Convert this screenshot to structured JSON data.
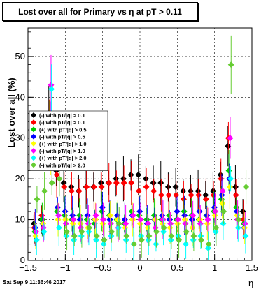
{
  "title": "Lost over all for Primary vs  η at pT > 0.11",
  "timestamp": "Sat Sep  9 11:36:46 2017",
  "colors": {
    "series": [
      "#000000",
      "#ff0000",
      "#00cc00",
      "#0000ff",
      "#ffff00",
      "#ff00ff",
      "#00ffff",
      "#66cc33"
    ]
  },
  "chart_data": {
    "type": "scatter",
    "xlabel": "η",
    "ylabel": "Lost over all (%)",
    "xlim": [
      -1.5,
      1.5
    ],
    "ylim": [
      0,
      57
    ],
    "x_ticks": [
      -1.5,
      -1,
      -0.5,
      0,
      0.5,
      1,
      1.5
    ],
    "x_tick_labels": [
      "−1.5",
      "−1",
      "−0.5",
      "0",
      "0.5",
      "1",
      "1.5"
    ],
    "y_ticks": [
      0,
      10,
      20,
      30,
      40,
      50
    ],
    "y_tick_labels": [
      "0",
      "10",
      "20",
      "30",
      "40",
      "50"
    ],
    "grid": true,
    "legend_position": "left-center",
    "series": [
      {
        "name": "(-) with pT/|q| > 0.1",
        "marker": "diamond",
        "x": [
          -1.4,
          -1.3,
          -1.2,
          -1.1,
          -1.0,
          -0.9,
          -0.8,
          -0.7,
          -0.6,
          -0.5,
          -0.4,
          -0.3,
          -0.2,
          -0.1,
          0.0,
          0.1,
          0.2,
          0.3,
          0.4,
          0.5,
          0.6,
          0.7,
          0.8,
          0.9,
          1.0,
          1.1,
          1.2,
          1.3,
          1.4
        ],
        "y": [
          9,
          10,
          36,
          22,
          19,
          18,
          17,
          18,
          18,
          19,
          19,
          20,
          20,
          21,
          21,
          20,
          19,
          19,
          18,
          18,
          17,
          17,
          17,
          16,
          17,
          21,
          28,
          18,
          12
        ]
      },
      {
        "name": "(-) with pT/|q| > 0.1",
        "marker": "diamond",
        "x": [
          -1.4,
          -1.3,
          -1.2,
          -1.1,
          -1.0,
          -0.9,
          -0.8,
          -0.7,
          -0.6,
          -0.5,
          -0.4,
          -0.3,
          -0.2,
          -0.1,
          0.0,
          0.1,
          0.2,
          0.3,
          0.4,
          0.5,
          0.6,
          0.7,
          0.8,
          0.9,
          1.0,
          1.1,
          1.2,
          1.3,
          1.4
        ],
        "y": [
          8,
          11,
          34,
          21,
          18,
          17,
          17,
          18,
          18,
          18,
          19,
          19,
          19,
          19,
          17,
          18,
          17,
          16,
          16,
          16,
          15,
          16,
          16,
          15,
          16,
          20,
          30,
          16,
          10
        ]
      },
      {
        "name": "(+) with pT/|q| > 0.5",
        "marker": "diamond",
        "x": [
          -1.4,
          -1.3,
          -1.2,
          -1.1,
          -1.0,
          -0.9,
          -0.8,
          -0.7,
          -0.6,
          -0.5,
          -0.4,
          -0.3,
          -0.2,
          -0.1,
          0.0,
          0.1,
          0.2,
          0.3,
          0.4,
          0.5,
          0.6,
          0.7,
          0.8,
          0.9,
          1.0,
          1.1,
          1.2,
          1.3,
          1.4
        ],
        "y": [
          7,
          10,
          35,
          12,
          11,
          10,
          11,
          10,
          9,
          12,
          11,
          10,
          9,
          12,
          11,
          10,
          11,
          10,
          11,
          10,
          12,
          11,
          10,
          11,
          12,
          15,
          22,
          13,
          9
        ]
      },
      {
        "name": "(-) with pT/|q| > 0.5",
        "marker": "diamond",
        "x": [
          -1.4,
          -1.3,
          -1.2,
          -1.1,
          -1.0,
          -0.9,
          -0.8,
          -0.7,
          -0.6,
          -0.5,
          -0.4,
          -0.3,
          -0.2,
          -0.1,
          0.0,
          0.1,
          0.2,
          0.3,
          0.4,
          0.5,
          0.6,
          0.7,
          0.8,
          0.9,
          1.0,
          1.1,
          1.2,
          1.3,
          1.4
        ],
        "y": [
          8,
          9,
          33,
          13,
          12,
          11,
          10,
          11,
          10,
          13,
          10,
          11,
          10,
          11,
          12,
          9,
          10,
          11,
          10,
          12,
          11,
          10,
          12,
          11,
          13,
          16,
          20,
          12,
          8
        ]
      },
      {
        "name": "(+) with pT/|q| > 1.0",
        "marker": "diamond",
        "x": [
          -1.4,
          -1.3,
          -1.2,
          -1.1,
          -1.0,
          -0.9,
          -0.8,
          -0.7,
          -0.6,
          -0.5,
          -0.4,
          -0.3,
          -0.2,
          -0.1,
          0.0,
          0.1,
          0.2,
          0.3,
          0.4,
          0.5,
          0.6,
          0.7,
          0.8,
          0.9,
          1.0,
          1.1,
          1.2,
          1.3,
          1.4
        ],
        "y": [
          6,
          9,
          25,
          10,
          10,
          9,
          9,
          8,
          10,
          9,
          11,
          10,
          8,
          10,
          9,
          8,
          10,
          9,
          8,
          9,
          10,
          8,
          10,
          9,
          11,
          14,
          18,
          11,
          8
        ]
      },
      {
        "name": "(-) with pT/|q| > 1.0",
        "marker": "diamond",
        "x": [
          -1.4,
          -1.3,
          -1.2,
          -1.1,
          -1.0,
          -0.9,
          -0.8,
          -0.7,
          -0.6,
          -0.5,
          -0.4,
          -0.3,
          -0.2,
          -0.1,
          0.0,
          0.1,
          0.2,
          0.3,
          0.4,
          0.5,
          0.6,
          0.7,
          0.8,
          0.9,
          1.0,
          1.1,
          1.2,
          1.3,
          1.4
        ],
        "y": [
          7,
          8,
          43,
          11,
          9,
          10,
          8,
          9,
          11,
          10,
          9,
          8,
          9,
          11,
          10,
          9,
          8,
          10,
          9,
          10,
          9,
          11,
          9,
          10,
          12,
          17,
          30,
          10,
          9
        ]
      },
      {
        "name": "(+) with pT/|q| > 2.0",
        "marker": "diamond",
        "x": [
          -1.4,
          -1.3,
          -1.2,
          -1.1,
          -1.0,
          -0.9,
          -0.8,
          -0.7,
          -0.6,
          -0.5,
          -0.4,
          -0.3,
          -0.2,
          -0.1,
          0.0,
          0.1,
          0.2,
          0.3,
          0.4,
          0.5,
          0.6,
          0.7,
          0.8,
          0.9,
          1.0,
          1.1,
          1.2,
          1.3,
          1.4
        ],
        "y": [
          5,
          7,
          42,
          8,
          6,
          5,
          6,
          7,
          5,
          4,
          6,
          8,
          5,
          4,
          6,
          5,
          4,
          7,
          5,
          6,
          4,
          5,
          6,
          3,
          7,
          9,
          20,
          8,
          6
        ]
      },
      {
        "name": "(-) with pT/|q| > 2.0",
        "marker": "diamond",
        "x": [
          -1.4,
          -1.3,
          -1.2,
          -1.1,
          -1.0,
          -0.9,
          -0.8,
          -0.7,
          -0.6,
          -0.5,
          -0.4,
          -0.3,
          -0.2,
          -0.1,
          0.0,
          0.1,
          0.2,
          0.3,
          0.4,
          0.5,
          0.6,
          0.7,
          0.8,
          0.9,
          1.0,
          1.1,
          1.2,
          1.3,
          1.4
        ],
        "y": [
          15,
          17,
          19,
          20,
          7,
          6,
          7,
          8,
          6,
          5,
          7,
          9,
          6,
          4,
          5,
          6,
          7,
          8,
          6,
          5,
          7,
          6,
          5,
          4,
          8,
          12,
          48,
          10,
          18
        ]
      }
    ]
  }
}
